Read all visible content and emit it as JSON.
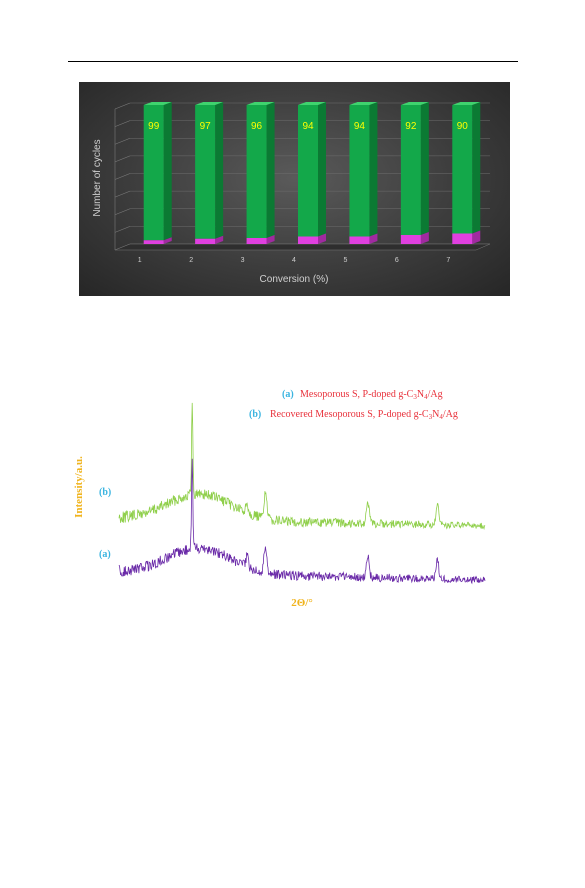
{
  "chart_data": [
    {
      "type": "bar",
      "ylabel": "Number of cycles",
      "xlabel": "Conversion (%)",
      "categories": [
        "1",
        "2",
        "3",
        "4",
        "5",
        "6",
        "7"
      ],
      "values": [
        99,
        97,
        96,
        94,
        94,
        92,
        90
      ],
      "data_labels": [
        "99",
        "97",
        "96",
        "94",
        "94",
        "92",
        "90"
      ],
      "colors": {
        "bar": "#13a84a",
        "base": "#e040e0",
        "label": "#ffff00"
      },
      "grid": true,
      "style": "3d-columns-on-dark-background"
    },
    {
      "type": "line",
      "xlabel": "2Θ/°",
      "ylabel": "Intensity/a.u.",
      "series": [
        {
          "name": "(a)",
          "marker_label": "(a)",
          "color": "#6a2aa8",
          "peaks": [
            0.2,
            0.35,
            0.4,
            0.68,
            0.87
          ]
        },
        {
          "name": "(b)",
          "marker_label": "(b)",
          "color": "#8fcf4a",
          "peaks": [
            0.2,
            0.35,
            0.4,
            0.68,
            0.87
          ]
        }
      ],
      "legend": [
        {
          "tag": "(a)",
          "parts": [
            "Mesoporous S, P-doped g-C",
            "3",
            "N",
            "4",
            "/Ag"
          ]
        },
        {
          "tag": "(b)",
          "parts": [
            "Recovered Mesoporous S, P-doped g-C",
            "3",
            "N",
            "4",
            "/Ag"
          ]
        }
      ],
      "colors": {
        "tag": "#3ab4e0",
        "legend_text": "#e8303a",
        "axis_label": "#f0b41e"
      }
    }
  ]
}
